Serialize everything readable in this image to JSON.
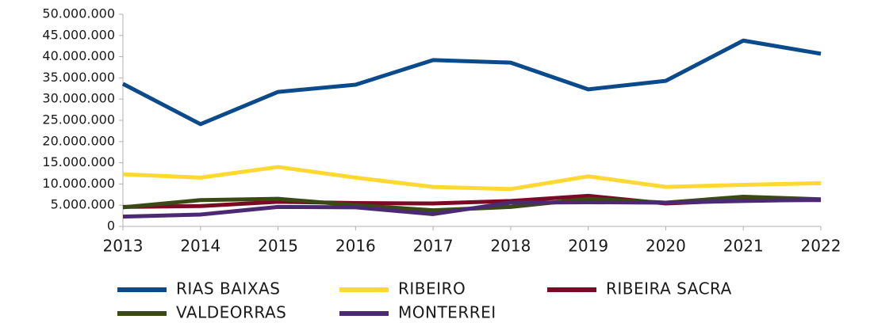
{
  "chart_data": {
    "type": "line",
    "x": [
      2013,
      2014,
      2015,
      2016,
      2017,
      2018,
      2019,
      2020,
      2021,
      2022
    ],
    "xlim": [
      2013,
      2022
    ],
    "xticks": [
      2013,
      2014,
      2015,
      2016,
      2017,
      2018,
      2019,
      2020,
      2021,
      2022
    ],
    "ylim": [
      0,
      50000000
    ],
    "yticks": [
      0,
      {
        "value": 5000000,
        "label": "5.000.000"
      },
      {
        "value": 10000000,
        "label": "10.000.000"
      },
      {
        "value": 15000000,
        "label": "15.000.000"
      },
      {
        "value": 20000000,
        "label": "20.000.000"
      },
      {
        "value": 25000000,
        "label": "25.000.000"
      },
      {
        "value": 30000000,
        "label": "30.000.000"
      },
      {
        "value": 35000000,
        "label": "35.000.000"
      },
      {
        "value": 40000000,
        "label": "40.000.000"
      },
      {
        "value": 45000000,
        "label": "45.000.000"
      },
      {
        "value": 50000000,
        "label": "50.000.000"
      }
    ],
    "grid": false,
    "legend": "bottom",
    "series": [
      {
        "name": "RIAS BAIXAS",
        "color": "#0b4a8b",
        "values": [
          33600000,
          24100000,
          31700000,
          33400000,
          39200000,
          38600000,
          32300000,
          34300000,
          43800000,
          40700000
        ]
      },
      {
        "name": "RIBEIRO",
        "color": "#ffd932",
        "values": [
          12300000,
          11500000,
          14000000,
          11500000,
          9300000,
          8800000,
          11800000,
          9300000,
          9800000,
          10200000
        ]
      },
      {
        "name": "RIBEIRA SACRA",
        "color": "#7b0a24",
        "values": [
          4600000,
          4800000,
          5800000,
          5500000,
          5400000,
          6000000,
          7200000,
          5400000,
          6200000,
          6200000
        ]
      },
      {
        "name": "VALDEORRAS",
        "color": "#3a4a15",
        "values": [
          4500000,
          6200000,
          6500000,
          5000000,
          3800000,
          4600000,
          6500000,
          5600000,
          7000000,
          6400000
        ]
      },
      {
        "name": "MONTERREI",
        "color": "#4b2a73",
        "values": [
          2300000,
          2800000,
          4600000,
          4500000,
          2900000,
          5600000,
          5700000,
          5600000,
          6000000,
          6300000
        ]
      }
    ]
  }
}
